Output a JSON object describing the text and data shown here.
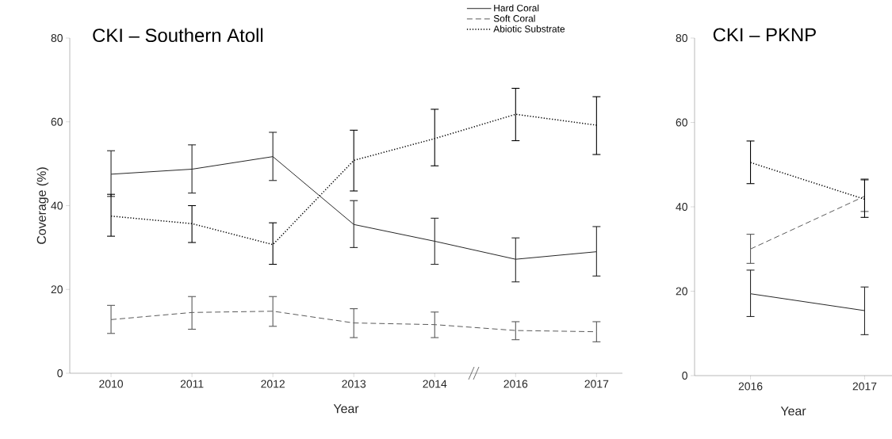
{
  "chart_data": [
    {
      "type": "line",
      "title": "CKI – Southern Atoll",
      "xlabel": "Year",
      "ylabel": "Coverage (%)",
      "categories": [
        "2010",
        "2011",
        "2012",
        "2013",
        "2014",
        "2016",
        "2017"
      ],
      "series": [
        {
          "name": "Hard Coral",
          "color": "#262626",
          "line_style": "solid",
          "values": [
            47.5,
            48.7,
            51.7,
            35.5,
            31.5,
            27.2,
            29.0
          ],
          "errors": [
            [
              42.2,
              53.1
            ],
            [
              43.0,
              54.5
            ],
            [
              46.0,
              57.5
            ],
            [
              30.0,
              41.2
            ],
            [
              26.0,
              37.0
            ],
            [
              21.8,
              32.3
            ],
            [
              23.2,
              35.0
            ]
          ]
        },
        {
          "name": "Soft Coral",
          "color": "#595959",
          "line_style": "dashed",
          "values": [
            12.8,
            14.5,
            14.8,
            12.0,
            11.6,
            10.2,
            9.9
          ],
          "errors": [
            [
              9.5,
              16.2
            ],
            [
              10.5,
              18.3
            ],
            [
              11.2,
              18.3
            ],
            [
              8.5,
              15.4
            ],
            [
              8.5,
              14.6
            ],
            [
              8.0,
              12.3
            ],
            [
              7.5,
              12.3
            ]
          ]
        },
        {
          "name": "Abiotic Substrate",
          "color": "#000000",
          "line_style": "dotted",
          "values": [
            37.5,
            35.7,
            30.7,
            50.8,
            56.0,
            61.8,
            59.2
          ],
          "errors": [
            [
              32.7,
              42.7
            ],
            [
              31.2,
              40.0
            ],
            [
              26.0,
              35.9
            ],
            [
              43.5,
              58.0
            ],
            [
              49.5,
              63.0
            ],
            [
              55.5,
              68.0
            ],
            [
              52.2,
              66.0
            ]
          ]
        }
      ],
      "ylim": [
        0,
        80
      ],
      "yticks": [
        0,
        20,
        40,
        60,
        80
      ],
      "legend": "top right"
    },
    {
      "type": "line",
      "title": "CKI – PKNP",
      "xlabel": "Year",
      "categories": [
        "2016",
        "2017"
      ],
      "series": [
        {
          "color": "#262626",
          "line_style": "solid",
          "values": [
            19.4,
            15.4
          ],
          "errors": [
            [
              14.0,
              25.0
            ],
            [
              9.7,
              21.0
            ]
          ]
        },
        {
          "color": "#595959",
          "line_style": "dashed",
          "values": [
            30.0,
            42.5
          ],
          "errors": [
            [
              26.6,
              33.5
            ],
            [
              38.9,
              46.6
            ]
          ]
        },
        {
          "color": "#000000",
          "line_style": "dotted",
          "values": [
            50.5,
            41.8
          ],
          "errors": [
            [
              45.5,
              55.6
            ],
            [
              37.5,
              46.4
            ]
          ]
        }
      ],
      "ylim": [
        0,
        80
      ],
      "yticks": [
        0,
        20,
        40,
        60,
        80
      ]
    }
  ]
}
